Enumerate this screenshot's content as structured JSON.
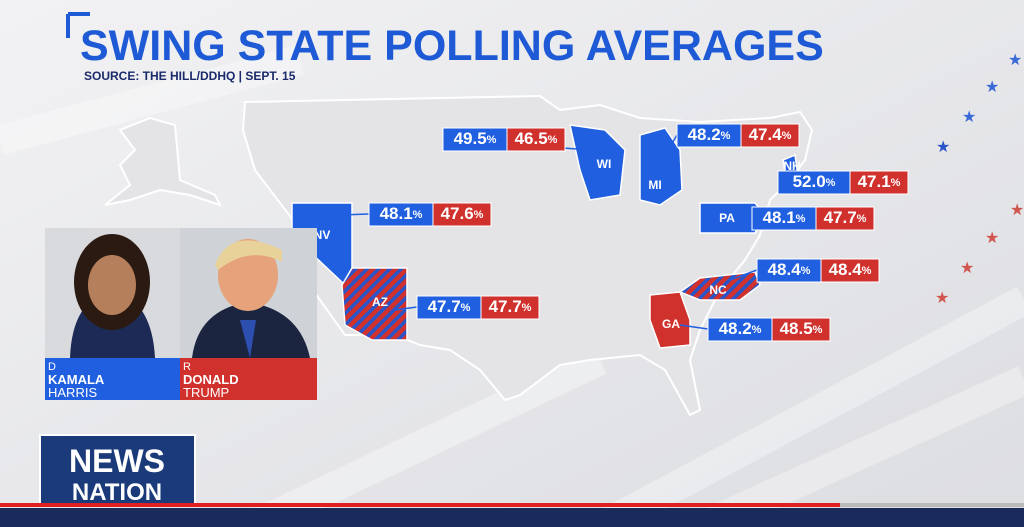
{
  "header": {
    "title": "SWING STATE POLLING AVERAGES",
    "source": "SOURCE: THE HILL/DDHQ | SEPT. 15"
  },
  "percent_sign": "%",
  "states": [
    {
      "abbr": "WI",
      "harris": "49.5",
      "trump": "46.5"
    },
    {
      "abbr": "MI",
      "harris": "48.2",
      "trump": "47.4"
    },
    {
      "abbr": "NH",
      "harris": "52.0",
      "trump": "47.1"
    },
    {
      "abbr": "NV",
      "harris": "48.1",
      "trump": "47.6"
    },
    {
      "abbr": "PA",
      "harris": "48.1",
      "trump": "47.7"
    },
    {
      "abbr": "NC",
      "harris": "48.4",
      "trump": "48.4"
    },
    {
      "abbr": "AZ",
      "harris": "47.7",
      "trump": "47.7"
    },
    {
      "abbr": "GA",
      "harris": "48.2",
      "trump": "48.5"
    }
  ],
  "candidates": [
    {
      "party": "D",
      "first": "KAMALA",
      "last": "HARRIS"
    },
    {
      "party": "R",
      "first": "DONALD",
      "last": "TRUMP"
    }
  ],
  "logo": {
    "line1": "NEWS",
    "line2": "NATION"
  }
}
